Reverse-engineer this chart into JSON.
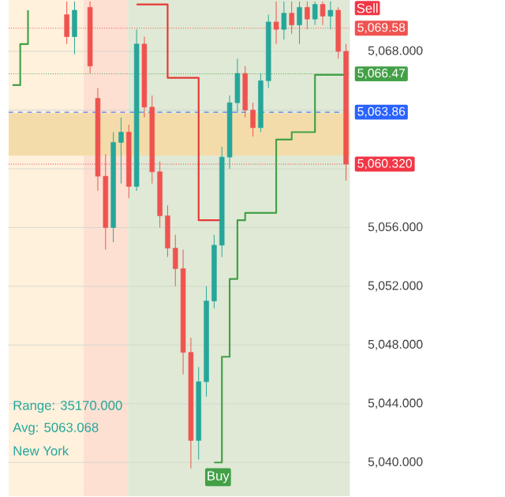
{
  "chart_data": {
    "type": "candlestick",
    "categories": [
      null,
      null,
      null,
      null,
      null,
      null,
      null,
      null,
      null,
      null,
      null,
      null,
      null,
      null,
      null,
      null,
      null,
      null,
      null,
      null,
      null,
      null,
      null,
      null,
      null,
      null,
      null,
      null,
      null,
      null,
      null,
      null,
      null,
      null,
      null,
      null,
      null,
      null,
      null,
      null,
      null,
      null,
      null,
      null
    ],
    "ohlc": [
      null,
      null,
      null,
      null,
      null,
      null,
      null,
      [
        5070.5,
        5071.4,
        5068.5,
        5069.0
      ],
      [
        5069.0,
        5071.4,
        5067.8,
        5070.8
      ],
      null,
      [
        5071.0,
        5071.4,
        5066.5,
        5067.0
      ],
      [
        5064.8,
        5065.5,
        5058.5,
        5059.5
      ],
      [
        5059.5,
        5061.0,
        5054.5,
        5056.0
      ],
      [
        5056.0,
        5062.5,
        5055.0,
        5061.8
      ],
      [
        5061.8,
        5063.5,
        5059.0,
        5062.5
      ],
      [
        5062.5,
        5063.0,
        5058.0,
        5058.8
      ],
      [
        5058.8,
        5069.5,
        5058.5,
        5068.5
      ],
      [
        5068.5,
        5069.0,
        5063.5,
        5064.2
      ],
      [
        5064.2,
        5065.0,
        5059.0,
        5059.8
      ],
      [
        5059.8,
        5060.5,
        5056.0,
        5056.8
      ],
      [
        5056.8,
        5057.5,
        5054.0,
        5054.6
      ],
      [
        5054.6,
        5055.5,
        5052.0,
        5053.2
      ],
      [
        5053.2,
        5054.5,
        5046.0,
        5047.5
      ],
      [
        5047.5,
        5048.5,
        5039.6,
        5041.5
      ],
      [
        5041.5,
        5046.5,
        5040.2,
        5045.5
      ],
      [
        5045.5,
        5052.0,
        5044.5,
        5051.0
      ],
      [
        5051.0,
        5055.5,
        5050.5,
        5054.8
      ],
      [
        5054.8,
        5061.5,
        5054.0,
        5060.8
      ],
      [
        5060.8,
        5065.0,
        5060.0,
        5064.5
      ],
      [
        5064.5,
        5067.5,
        5063.8,
        5066.5
      ],
      [
        5066.5,
        5067.0,
        5063.5,
        5064.0
      ],
      [
        5064.0,
        5064.5,
        5062.2,
        5062.8
      ],
      [
        5062.8,
        5066.5,
        5062.5,
        5066.0
      ],
      [
        5066.0,
        5070.5,
        5065.5,
        5070.0
      ],
      [
        5070.0,
        5071.4,
        5068.5,
        5069.5
      ],
      [
        5069.5,
        5071.4,
        5068.8,
        5070.6
      ],
      [
        5070.6,
        5071.4,
        5069.2,
        5069.8
      ],
      [
        5069.8,
        5071.4,
        5068.5,
        5071.0
      ],
      [
        5071.0,
        5071.4,
        5069.5,
        5070.2
      ],
      [
        5070.2,
        5071.4,
        5069.8,
        5071.2
      ],
      [
        5071.2,
        5071.4,
        5069.8,
        5070.4
      ],
      [
        5070.4,
        5071.4,
        5069.5,
        5070.8
      ],
      [
        5070.8,
        5071.0,
        5067.5,
        5068.0
      ],
      [
        5068.0,
        5068.5,
        5059.2,
        5060.32
      ]
    ],
    "series": [
      {
        "type": "step",
        "color": "#e53935",
        "values": [
          null,
          null,
          null,
          null,
          null,
          null,
          null,
          null,
          null,
          null,
          null,
          null,
          null,
          null,
          null,
          null,
          5071.2,
          5071.2,
          5071.2,
          5071.2,
          5066.2,
          5066.2,
          5066.2,
          5066.2,
          5056.5,
          5056.5,
          5056.5,
          5056.5,
          null,
          null,
          null,
          null,
          null,
          null,
          null,
          null,
          null,
          null,
          null,
          null,
          null,
          null,
          null,
          null
        ]
      },
      {
        "type": "step",
        "color": "#43a047",
        "values": [
          5065.7,
          5068.5,
          5070.8,
          null,
          null,
          null,
          null,
          null,
          null,
          null,
          null,
          null,
          null,
          null,
          null,
          null,
          null,
          null,
          null,
          null,
          null,
          null,
          null,
          null,
          null,
          null,
          5040.0,
          5047.2,
          5052.5,
          5056.5,
          5057.0,
          5057.0,
          5057.0,
          5057.0,
          5062.0,
          5062.0,
          5062.5,
          5062.5,
          5062.5,
          5066.4,
          5066.4,
          5066.4,
          5066.4,
          5066.4
        ]
      }
    ],
    "ylim": [
      5037.7,
      5071.5
    ],
    "yticks": [
      {
        "value": 5040,
        "label": "5,040.000"
      },
      {
        "value": 5044,
        "label": "5,044.000"
      },
      {
        "value": 5048,
        "label": "5,048.000"
      },
      {
        "value": 5052,
        "label": "5,052.000"
      },
      {
        "value": 5056,
        "label": "5,056.000"
      },
      {
        "value": 5060,
        "label": null
      },
      {
        "value": 5064,
        "label": null
      },
      {
        "value": 5068,
        "label": "5,068.000"
      }
    ],
    "tick_labels": "y",
    "grid": "y",
    "bands": [
      {
        "axis": "y",
        "from": 5060.9,
        "to": 5063.8,
        "color": "#f3dcaa"
      }
    ],
    "ref_lines": [
      {
        "axis": "y",
        "value": 5069.58,
        "label": "5,069.58",
        "color": "#ef5350",
        "line_style": "dotted"
      },
      {
        "axis": "y",
        "value": 5066.47,
        "label": "5,066.47",
        "color": "#43a047",
        "line_style": "dotted"
      },
      {
        "axis": "y",
        "value": 5063.86,
        "label": "5,063.86",
        "color": "#2962ff",
        "line_style": "dashed"
      },
      {
        "axis": "y",
        "value": 5060.32,
        "label": "5,060.320",
        "color": "#f23645",
        "line_style": "dotted"
      }
    ],
    "annotations": [
      "Range: 35170.000",
      "Avg: 5063.068",
      "New York",
      "Buy",
      "Sell"
    ]
  }
}
